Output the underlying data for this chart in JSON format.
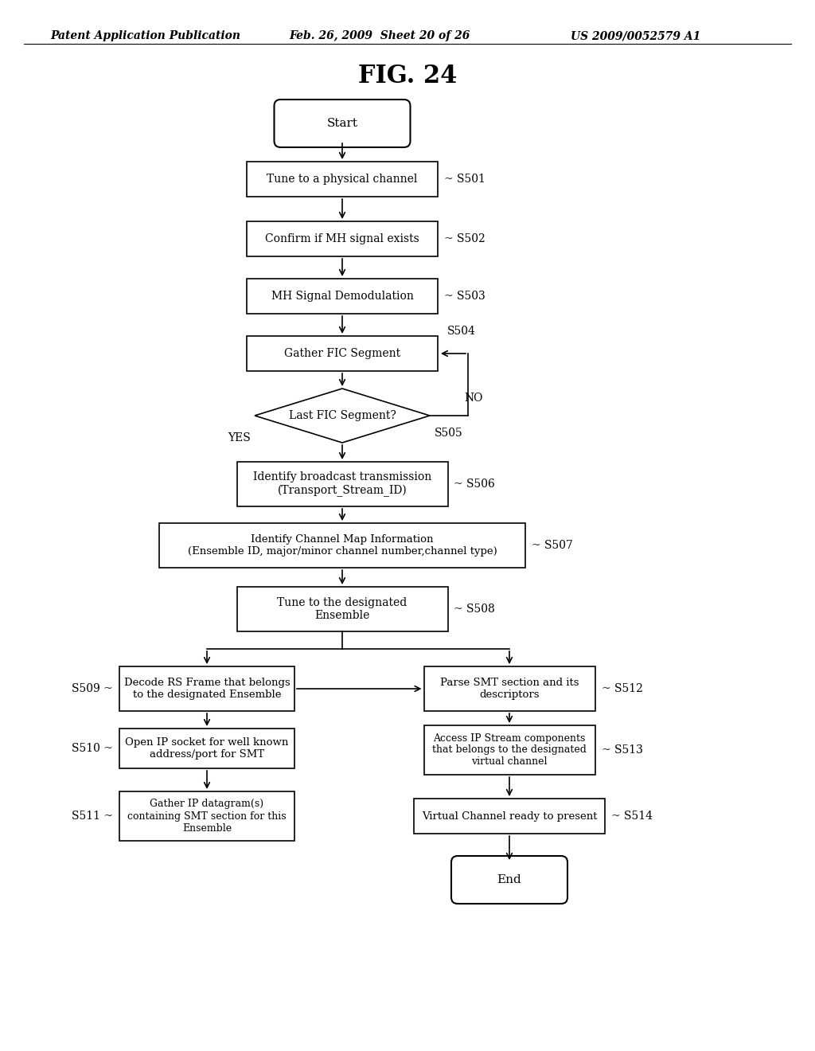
{
  "title": "FIG. 24",
  "header_left": "Patent Application Publication",
  "header_mid": "Feb. 26, 2009  Sheet 20 of 26",
  "header_right": "US 2009/0052579 A1",
  "bg_color": "#ffffff",
  "fig_width": 10.24,
  "fig_height": 13.2,
  "dpi": 100
}
